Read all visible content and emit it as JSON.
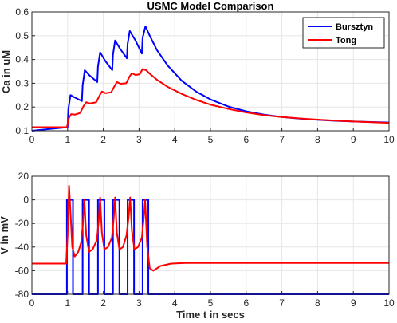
{
  "chart_data": [
    {
      "type": "line",
      "title": "USMC Model Comparison",
      "xlabel": "",
      "ylabel": "Ca in uM",
      "xlim": [
        0,
        10
      ],
      "ylim": [
        0.1,
        0.6
      ],
      "xticks": [
        "0",
        "1",
        "2",
        "3",
        "4",
        "5",
        "6",
        "7",
        "8",
        "9",
        "10"
      ],
      "yticks": [
        "0.1",
        "0.2",
        "0.3",
        "0.4",
        "0.5",
        "0.6"
      ],
      "grid": true,
      "legend": "top-right",
      "series": [
        {
          "name": "Bursztyn",
          "color": "#0000ff",
          "x": [
            0,
            1.0,
            1.02,
            1.08,
            1.2,
            1.4,
            1.42,
            1.48,
            1.6,
            1.83,
            1.85,
            1.91,
            2.05,
            2.25,
            2.27,
            2.33,
            2.47,
            2.66,
            2.68,
            2.74,
            2.9,
            3.08,
            3.1,
            3.18,
            3.3,
            3.5,
            3.8,
            4.2,
            4.6,
            5.0,
            5.5,
            6.0,
            6.5,
            7.0,
            7.5,
            8.0,
            8.5,
            9.0,
            9.5,
            10.0
          ],
          "y": [
            0.1,
            0.115,
            0.19,
            0.25,
            0.24,
            0.225,
            0.29,
            0.355,
            0.335,
            0.305,
            0.37,
            0.43,
            0.395,
            0.355,
            0.42,
            0.48,
            0.445,
            0.405,
            0.465,
            0.52,
            0.48,
            0.425,
            0.49,
            0.54,
            0.5,
            0.44,
            0.375,
            0.31,
            0.265,
            0.232,
            0.202,
            0.182,
            0.168,
            0.158,
            0.151,
            0.146,
            0.142,
            0.139,
            0.137,
            0.135
          ]
        },
        {
          "name": "Tong",
          "color": "#ff0000",
          "x": [
            0,
            0.98,
            1.04,
            1.1,
            1.2,
            1.35,
            1.45,
            1.52,
            1.62,
            1.8,
            1.9,
            1.96,
            2.06,
            2.22,
            2.32,
            2.38,
            2.48,
            2.64,
            2.74,
            2.8,
            2.9,
            3.02,
            3.1,
            3.2,
            3.3,
            3.5,
            3.8,
            4.2,
            4.6,
            5.0,
            5.5,
            6.0,
            6.5,
            7.0,
            7.5,
            8.0,
            8.5,
            9.0,
            9.5,
            10.0
          ],
          "y": [
            0.115,
            0.115,
            0.155,
            0.17,
            0.168,
            0.175,
            0.205,
            0.22,
            0.215,
            0.22,
            0.25,
            0.265,
            0.258,
            0.262,
            0.29,
            0.305,
            0.298,
            0.3,
            0.33,
            0.342,
            0.335,
            0.338,
            0.36,
            0.355,
            0.34,
            0.315,
            0.285,
            0.255,
            0.23,
            0.21,
            0.192,
            0.177,
            0.166,
            0.158,
            0.152,
            0.147,
            0.143,
            0.139,
            0.136,
            0.133
          ]
        }
      ]
    },
    {
      "type": "line",
      "title": "",
      "xlabel": "Time t in secs",
      "ylabel": "V in mV",
      "xlim": [
        0,
        10
      ],
      "ylim": [
        -80,
        20
      ],
      "xticks": [
        "0",
        "1",
        "2",
        "3",
        "4",
        "5",
        "6",
        "7",
        "8",
        "9",
        "10"
      ],
      "yticks": [
        "-80",
        "-60",
        "-40",
        "-20",
        "0",
        "20"
      ],
      "grid": true,
      "series": [
        {
          "name": "Bursztyn",
          "color": "#0000ff",
          "x": [
            0,
            0.98,
            0.98,
            1.15,
            1.15,
            1.42,
            1.42,
            1.6,
            1.6,
            1.85,
            1.85,
            2.03,
            2.03,
            2.27,
            2.27,
            2.45,
            2.45,
            2.68,
            2.68,
            2.86,
            2.86,
            3.1,
            3.1,
            3.26,
            3.26,
            10.0
          ],
          "y": [
            -80,
            -80,
            0,
            0,
            -80,
            -80,
            0,
            0,
            -80,
            -80,
            0,
            0,
            -80,
            -80,
            0,
            0,
            -80,
            -80,
            0,
            0,
            -80,
            -80,
            0,
            0,
            -80,
            -80
          ]
        },
        {
          "name": "Tong",
          "color": "#ff0000",
          "x": [
            0,
            0.96,
            1.0,
            1.04,
            1.08,
            1.13,
            1.2,
            1.3,
            1.38,
            1.43,
            1.47,
            1.52,
            1.6,
            1.7,
            1.82,
            1.87,
            1.91,
            1.96,
            2.03,
            2.13,
            2.24,
            2.29,
            2.33,
            2.38,
            2.45,
            2.55,
            2.65,
            2.71,
            2.75,
            2.8,
            2.87,
            2.97,
            3.08,
            3.13,
            3.17,
            3.23,
            3.3,
            3.4,
            3.6,
            3.9,
            4.3,
            5.0,
            6.0,
            7.0,
            8.0,
            9.0,
            10.0
          ],
          "y": [
            -54,
            -54,
            -30,
            12,
            -10,
            -40,
            -48,
            -44,
            -36,
            -20,
            0,
            -30,
            -44,
            -42,
            -34,
            -18,
            2,
            -28,
            -42,
            -40,
            -32,
            -16,
            2,
            -28,
            -42,
            -40,
            -30,
            -14,
            2,
            -26,
            -42,
            -40,
            -32,
            -16,
            0,
            -40,
            -58,
            -60,
            -56,
            -54,
            -53.5,
            -53.5,
            -53.5,
            -53.5,
            -53.5,
            -53.5,
            -53.5
          ]
        }
      ]
    }
  ]
}
